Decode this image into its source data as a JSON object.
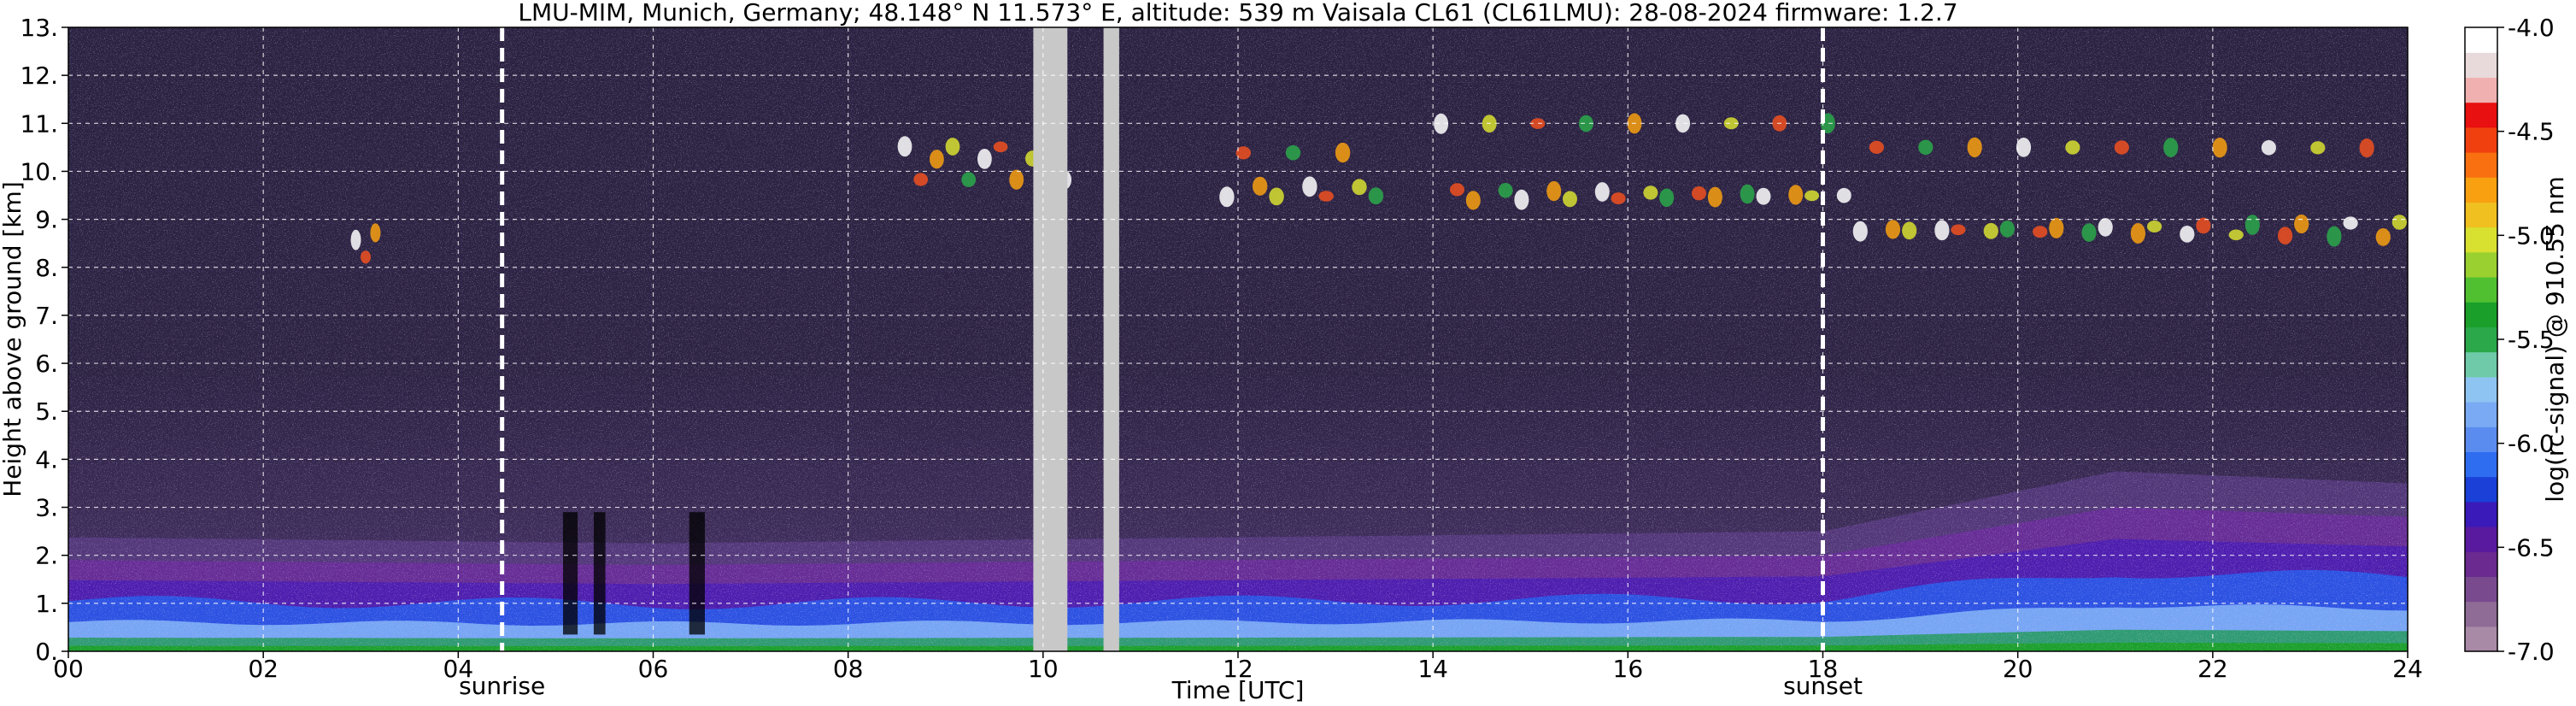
{
  "chart_data": {
    "type": "heatmap",
    "title": "LMU-MIM, Munich, Germany; 48.148° N 11.573° E, altitude: 539 m    Vaisala CL61 (CL61LMU): 28-08-2024    firmware: 1.2.7",
    "xlabel": "Time [UTC]",
    "ylabel": "Height above ground [km]",
    "colorbar_label": "log(rc-signal) @ 910.55 nm",
    "xlim": [
      0,
      24
    ],
    "ylim": [
      0,
      13
    ],
    "x_ticks": [
      "00",
      "02",
      "04",
      "06",
      "08",
      "10",
      "12",
      "14",
      "16",
      "18",
      "20",
      "22",
      "24"
    ],
    "y_ticks": [
      "0.",
      "1.",
      "2.",
      "3.",
      "4.",
      "5.",
      "6.",
      "7.",
      "8.",
      "9.",
      "10.",
      "11.",
      "12.",
      "13."
    ],
    "colorbar_range": [
      -7.0,
      -4.0
    ],
    "colorbar_ticks": [
      "-4.0",
      "-4.5",
      "-5.0",
      "-5.5",
      "-6.0",
      "-6.5",
      "-7.0"
    ],
    "colormap": [
      "#a88aa6",
      "#8e6c96",
      "#7a4a8f",
      "#6a2a8f",
      "#5a1aa0",
      "#3a1ab8",
      "#1a40d8",
      "#2e6cf0",
      "#5a8cf0",
      "#7aaaf4",
      "#8ec4f2",
      "#6ecaa8",
      "#2aa84a",
      "#1aa02a",
      "#50c030",
      "#9ad030",
      "#d8e030",
      "#f0c020",
      "#f8a010",
      "#f87010",
      "#f04010",
      "#e81010",
      "#f0b0b0",
      "#e8dada",
      "#ffffff"
    ],
    "grid": true,
    "annotations": [
      {
        "label": "sunrise",
        "x": 4.45
      },
      {
        "label": "sunset",
        "x": 18.0
      }
    ],
    "missing_data_x": [
      [
        9.9,
        10.25
      ],
      [
        10.62,
        10.78
      ]
    ],
    "boundary_layer_top_km": [
      [
        0,
        1.9
      ],
      [
        6,
        1.8
      ],
      [
        12,
        1.9
      ],
      [
        18,
        2.0
      ],
      [
        21,
        3.0
      ],
      [
        24,
        2.8
      ]
    ],
    "cirrus_clouds": [
      {
        "start": 2.9,
        "end": 3.2,
        "base": 8.2,
        "top": 8.8
      },
      {
        "start": 8.5,
        "end": 10.3,
        "base": 9.8,
        "top": 10.6
      },
      {
        "start": 11.8,
        "end": 13.5,
        "base": 9.3,
        "top": 10.4
      },
      {
        "start": 14.0,
        "end": 18.3,
        "base": 9.0,
        "top": 11.0
      },
      {
        "start": 18.3,
        "end": 24.0,
        "base": 8.2,
        "top": 10.5
      }
    ]
  }
}
